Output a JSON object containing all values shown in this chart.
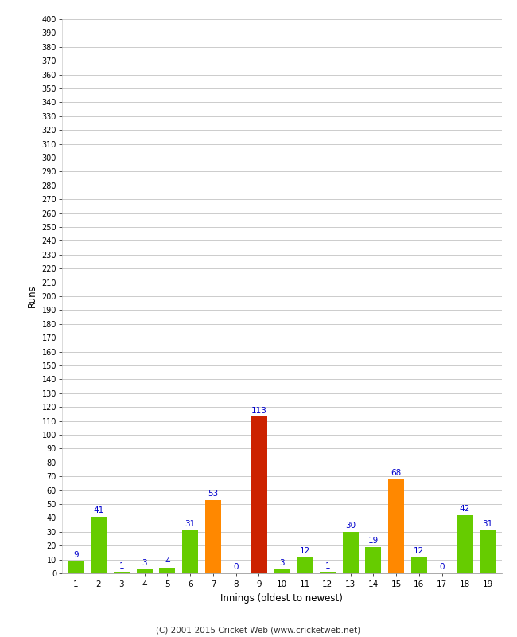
{
  "xlabel": "Innings (oldest to newest)",
  "ylabel": "Runs",
  "categories": [
    1,
    2,
    3,
    4,
    5,
    6,
    7,
    8,
    9,
    10,
    11,
    12,
    13,
    14,
    15,
    16,
    17,
    18,
    19
  ],
  "values": [
    9,
    41,
    1,
    3,
    4,
    31,
    53,
    0,
    113,
    3,
    12,
    1,
    30,
    19,
    68,
    12,
    0,
    42,
    31
  ],
  "colors": [
    "#66cc00",
    "#66cc00",
    "#66cc00",
    "#66cc00",
    "#66cc00",
    "#66cc00",
    "#ff8800",
    "#66cc00",
    "#cc2200",
    "#66cc00",
    "#66cc00",
    "#66cc00",
    "#66cc00",
    "#66cc00",
    "#ff8800",
    "#66cc00",
    "#66cc00",
    "#66cc00",
    "#66cc00"
  ],
  "ylim": [
    0,
    400
  ],
  "yticks": [
    0,
    10,
    20,
    30,
    40,
    50,
    60,
    70,
    80,
    90,
    100,
    110,
    120,
    130,
    140,
    150,
    160,
    170,
    180,
    190,
    200,
    210,
    220,
    230,
    240,
    250,
    260,
    270,
    280,
    290,
    300,
    310,
    320,
    330,
    340,
    350,
    360,
    370,
    380,
    390,
    400
  ],
  "background_color": "#ffffff",
  "grid_color": "#cccccc",
  "label_color": "#0000cc",
  "footer": "(C) 2001-2015 Cricket Web (www.cricketweb.net)"
}
